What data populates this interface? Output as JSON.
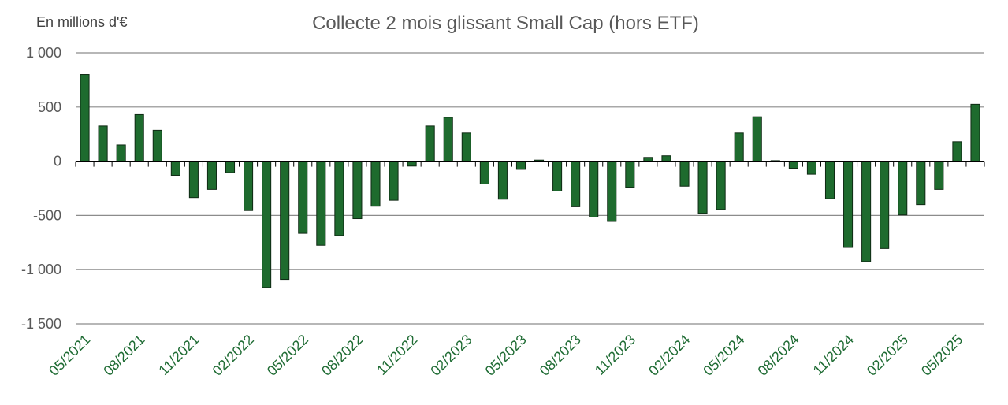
{
  "chart_data": {
    "type": "bar",
    "title": "Collecte 2 mois glissant Small Cap (hors ETF)",
    "unit_label": "En millions d'€",
    "xlabel": "",
    "ylabel": "",
    "ylim": [
      -1500,
      1000
    ],
    "y_ticks": [
      1000,
      500,
      0,
      -500,
      -1000,
      -1500
    ],
    "y_tick_labels": [
      "1 000",
      "500",
      "0",
      "-500",
      "-1 000",
      "-1 500"
    ],
    "grid": "horizontal",
    "bar_color": "#1e6b2e",
    "bar_border_color": "#0f2a14",
    "x_tick_color": "#1e6b33",
    "categories": [
      "05/2021",
      "06/2021",
      "07/2021",
      "08/2021",
      "09/2021",
      "10/2021",
      "11/2021",
      "12/2021",
      "01/2022",
      "02/2022",
      "03/2022",
      "04/2022",
      "05/2022",
      "06/2022",
      "07/2022",
      "08/2022",
      "09/2022",
      "10/2022",
      "11/2022",
      "12/2022",
      "01/2023",
      "02/2023",
      "03/2023",
      "04/2023",
      "05/2023",
      "06/2023",
      "07/2023",
      "08/2023",
      "09/2023",
      "10/2023",
      "11/2023",
      "12/2023",
      "01/2024",
      "02/2024",
      "03/2024",
      "04/2024",
      "05/2024",
      "06/2024",
      "07/2024",
      "08/2024",
      "09/2024",
      "10/2024",
      "11/2024",
      "12/2024",
      "01/2025",
      "02/2025",
      "03/2025",
      "04/2025",
      "05/2025",
      "06/2025"
    ],
    "x_tick_labels": [
      "05/2021",
      "08/2021",
      "11/2021",
      "02/2022",
      "05/2022",
      "08/2022",
      "11/2022",
      "02/2023",
      "05/2023",
      "08/2023",
      "11/2023",
      "02/2024",
      "05/2024",
      "08/2024",
      "11/2024",
      "02/2025",
      "05/2025"
    ],
    "values": [
      800,
      325,
      150,
      430,
      285,
      -130,
      -335,
      -260,
      -105,
      -455,
      -1165,
      -1090,
      -665,
      -775,
      -685,
      -530,
      -415,
      -360,
      -45,
      325,
      405,
      260,
      -210,
      -350,
      -75,
      10,
      -275,
      -420,
      -515,
      -555,
      -240,
      35,
      50,
      -230,
      -480,
      -445,
      260,
      410,
      5,
      -65,
      -120,
      -345,
      -795,
      -925,
      -805,
      -495,
      -400,
      -260,
      180,
      525
    ]
  }
}
